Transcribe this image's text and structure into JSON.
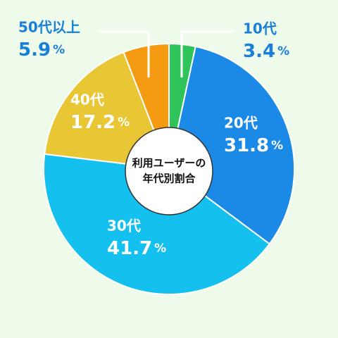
{
  "chart_data": {
    "type": "pie",
    "title": [
      "利用ユーザーの",
      "年代別割合"
    ],
    "categories": [
      "10代",
      "20代",
      "30代",
      "40代",
      "50代以上"
    ],
    "values": [
      3.4,
      31.8,
      41.7,
      17.2,
      5.9
    ],
    "value_labels": [
      "3.4%",
      "31.8%",
      "41.7%",
      "17.2%",
      "5.9%"
    ],
    "colors": [
      "#2ec45a",
      "#1a8ae6",
      "#14c1ee",
      "#e9c633",
      "#f49b12"
    ]
  }
}
